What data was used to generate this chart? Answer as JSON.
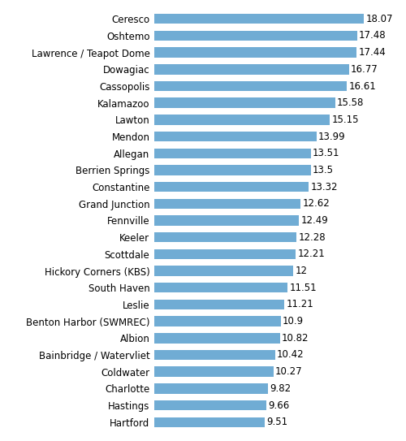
{
  "categories": [
    "Hartford",
    "Hastings",
    "Charlotte",
    "Coldwater",
    "Bainbridge / Watervliet",
    "Albion",
    "Benton Harbor (SWMREC)",
    "Leslie",
    "South Haven",
    "Hickory Corners (KBS)",
    "Scottdale",
    "Keeler",
    "Fennville",
    "Grand Junction",
    "Constantine",
    "Berrien Springs",
    "Allegan",
    "Mendon",
    "Lawton",
    "Kalamazoo",
    "Cassopolis",
    "Dowagiac",
    "Lawrence / Teapot Dome",
    "Oshtemo",
    "Ceresco"
  ],
  "values": [
    9.51,
    9.66,
    9.82,
    10.27,
    10.42,
    10.82,
    10.9,
    11.21,
    11.51,
    12.0,
    12.21,
    12.28,
    12.49,
    12.62,
    13.32,
    13.5,
    13.51,
    13.99,
    15.15,
    15.58,
    16.61,
    16.77,
    17.44,
    17.48,
    18.07
  ],
  "bar_color": "#70acd4",
  "background_color": "#ffffff",
  "text_color": "#000000",
  "value_fontsize": 8.5,
  "label_fontsize": 8.5,
  "xlim": [
    0,
    21
  ],
  "bar_height": 0.6
}
